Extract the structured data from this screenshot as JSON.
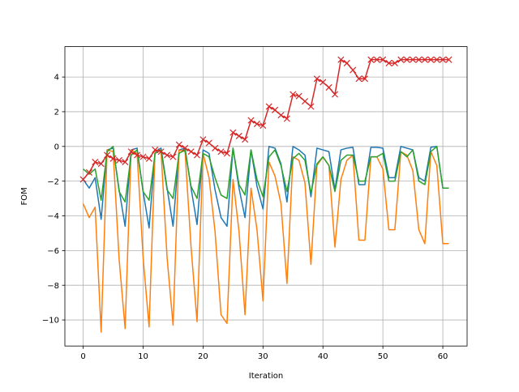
{
  "chart_data": {
    "type": "line",
    "title": "",
    "xlabel": "Iteration",
    "ylabel": "FOM",
    "xlim": [
      -3.05,
      64.05
    ],
    "ylim": [
      -11.5,
      5.75
    ],
    "grid": true,
    "x_ticks": [
      0,
      10,
      20,
      30,
      40,
      50,
      60
    ],
    "y_ticks": [
      -10,
      -8,
      -6,
      -4,
      -2,
      0,
      2,
      4
    ],
    "x_tick_labels": [
      "0",
      "10",
      "20",
      "30",
      "40",
      "50",
      "60"
    ],
    "y_tick_labels": [
      "−10",
      "−8",
      "−6",
      "−4",
      "−2",
      "0",
      "2",
      "4"
    ],
    "x": [
      0,
      1,
      2,
      3,
      4,
      5,
      6,
      7,
      8,
      9,
      10,
      11,
      12,
      13,
      14,
      15,
      16,
      17,
      18,
      19,
      20,
      21,
      22,
      23,
      24,
      25,
      26,
      27,
      28,
      29,
      30,
      31,
      32,
      33,
      34,
      35,
      36,
      37,
      38,
      39,
      40,
      41,
      42,
      43,
      44,
      45,
      46,
      47,
      48,
      49,
      50,
      51,
      52,
      53,
      54,
      55,
      56,
      57,
      58,
      59,
      60,
      61
    ],
    "series": [
      {
        "color": "#1f77b4",
        "marker": "none",
        "values": [
          -1.9,
          -2.4,
          -1.8,
          -4.2,
          -0.2,
          -0.1,
          -2.5,
          -4.6,
          -0.2,
          -0.1,
          -2.6,
          -4.7,
          -0.3,
          -0.1,
          -2.4,
          -4.6,
          -0.2,
          -0.1,
          -2.4,
          -4.5,
          -0.2,
          -0.4,
          -2.5,
          -4.1,
          -4.6,
          -0.1,
          -2.4,
          -4.1,
          -0.2,
          -2.3,
          -3.6,
          0.0,
          -0.1,
          -1.0,
          -3.2,
          0.0,
          -0.2,
          -0.5,
          -2.9,
          -0.1,
          -0.2,
          -0.3,
          -2.5,
          -0.2,
          -0.1,
          -0.05,
          -2.2,
          -2.2,
          -0.05,
          -0.05,
          -0.1,
          -1.8,
          -1.8,
          0.0,
          -0.1,
          -0.2,
          -1.8,
          -2.0,
          -0.05,
          0.0,
          -2.4,
          -2.4
        ]
      },
      {
        "color": "#ff7f0e",
        "marker": "none",
        "values": [
          -3.3,
          -4.1,
          -3.5,
          -10.7,
          -0.2,
          -0.3,
          -6.5,
          -10.5,
          -0.2,
          -0.4,
          -6.4,
          -10.4,
          -0.2,
          -0.3,
          -6.4,
          -10.3,
          -0.2,
          -0.3,
          -5.8,
          -10.1,
          -0.4,
          -1.8,
          -4.9,
          -9.7,
          -10.2,
          -1.9,
          -4.9,
          -9.7,
          -2.4,
          -4.8,
          -8.9,
          -0.9,
          -1.7,
          -3.3,
          -7.9,
          -0.6,
          -0.8,
          -2.1,
          -6.8,
          -1.1,
          -0.6,
          -1.1,
          -5.8,
          -1.9,
          -0.8,
          -0.5,
          -5.4,
          -5.4,
          -0.6,
          -0.6,
          -1.3,
          -4.8,
          -4.8,
          -0.3,
          -0.5,
          -1.4,
          -4.8,
          -5.6,
          -0.3,
          -1.1,
          -5.6,
          -5.6
        ]
      },
      {
        "color": "#2ca02c",
        "marker": "none",
        "values": [
          -1.3,
          -1.6,
          -1.3,
          -3.1,
          -0.3,
          0.0,
          -2.6,
          -3.2,
          -0.5,
          -0.2,
          -2.6,
          -3.1,
          -0.4,
          -0.2,
          -2.5,
          -3.0,
          -0.4,
          -0.2,
          -2.3,
          -3.0,
          -0.4,
          -0.6,
          -1.8,
          -2.8,
          -3.0,
          -0.1,
          -2.2,
          -2.8,
          -0.2,
          -1.9,
          -2.9,
          -0.6,
          -0.2,
          -1.1,
          -2.6,
          -0.7,
          -0.4,
          -0.8,
          -2.7,
          -1.0,
          -0.6,
          -1.1,
          -2.6,
          -0.8,
          -0.5,
          -0.5,
          -2.0,
          -2.0,
          -0.6,
          -0.6,
          -0.4,
          -2.0,
          -2.0,
          -0.3,
          -0.6,
          -0.2,
          -2.0,
          -2.2,
          -0.3,
          0.0,
          -2.4,
          -2.4
        ]
      },
      {
        "color": "#d62728",
        "marker": "x",
        "values": [
          -1.9,
          -1.5,
          -0.9,
          -1.0,
          -0.5,
          -0.7,
          -0.8,
          -0.9,
          -0.3,
          -0.5,
          -0.6,
          -0.7,
          -0.2,
          -0.3,
          -0.5,
          -0.6,
          0.1,
          -0.1,
          -0.3,
          -0.5,
          0.4,
          0.2,
          -0.1,
          -0.3,
          -0.4,
          0.8,
          0.6,
          0.4,
          1.5,
          1.3,
          1.2,
          2.3,
          2.1,
          1.8,
          1.6,
          3.0,
          2.9,
          2.6,
          2.3,
          3.9,
          3.7,
          3.4,
          3.0,
          5.0,
          4.8,
          4.4,
          3.9,
          3.9,
          5.0,
          5.0,
          5.0,
          4.8,
          4.8,
          5.0,
          5.0,
          5.0,
          5.0,
          5.0,
          5.0,
          5.0,
          5.0,
          5.0
        ]
      }
    ]
  }
}
